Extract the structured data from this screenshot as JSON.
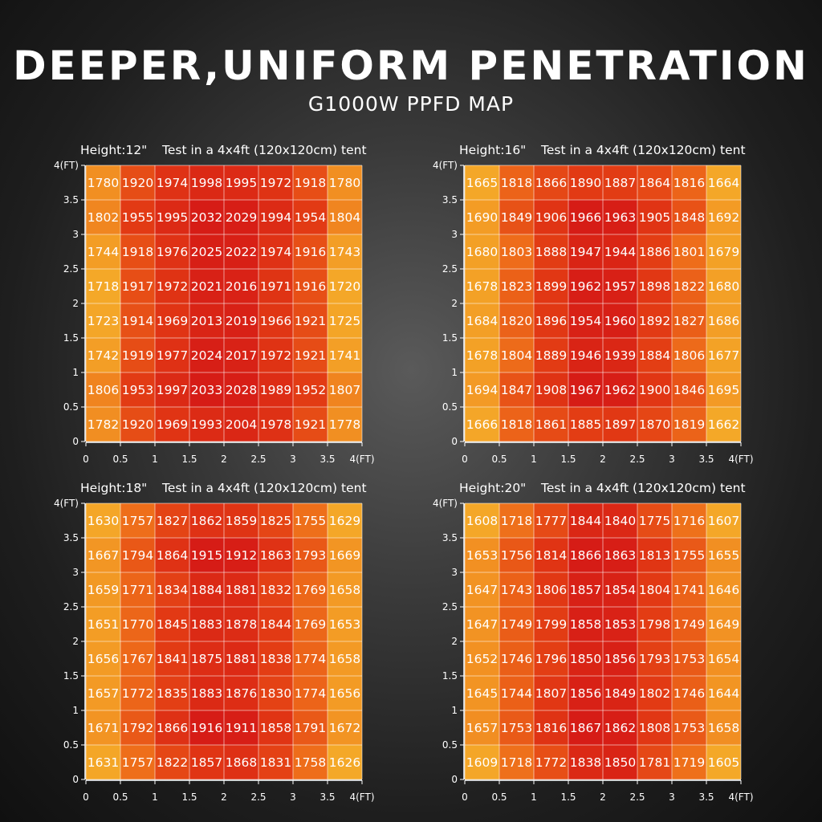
{
  "title": "DEEPER,UNIFORM PENETRATION",
  "subtitle": "G1000W PPFD MAP",
  "chart_data": [
    {
      "type": "heatmap",
      "title": "Height:12\"",
      "subtitle": "Test in a 4x4ft (120x120cm) tent",
      "x_ticks": [
        "0",
        "0.5",
        "1",
        "1.5",
        "2",
        "2.5",
        "3",
        "3.5",
        "4(FT)"
      ],
      "y_ticks": [
        "0",
        "0.5",
        "1",
        "1.5",
        "2",
        "2.5",
        "3",
        "3.5",
        "4(FT)"
      ],
      "xlim": [
        0,
        4
      ],
      "ylim": [
        0,
        4
      ],
      "rows": [
        [
          1780,
          1920,
          1974,
          1998,
          1995,
          1972,
          1918,
          1780
        ],
        [
          1802,
          1955,
          1995,
          2032,
          2029,
          1994,
          1954,
          1804
        ],
        [
          1744,
          1918,
          1976,
          2025,
          2022,
          1974,
          1916,
          1743
        ],
        [
          1718,
          1917,
          1972,
          2021,
          2016,
          1971,
          1916,
          1720
        ],
        [
          1723,
          1914,
          1969,
          2013,
          2019,
          1966,
          1921,
          1725
        ],
        [
          1742,
          1919,
          1977,
          2024,
          2017,
          1972,
          1921,
          1741
        ],
        [
          1806,
          1953,
          1997,
          2033,
          2028,
          1989,
          1952,
          1807
        ],
        [
          1782,
          1920,
          1969,
          1993,
          2004,
          1978,
          1921,
          1778
        ]
      ]
    },
    {
      "type": "heatmap",
      "title": "Height:16\"",
      "subtitle": "Test in a 4x4ft (120x120cm) tent",
      "x_ticks": [
        "0",
        "0.5",
        "1",
        "1.5",
        "2",
        "2.5",
        "3",
        "3.5",
        "4(FT)"
      ],
      "y_ticks": [
        "0",
        "0.5",
        "1",
        "1.5",
        "2",
        "2.5",
        "3",
        "3.5",
        "4(FT)"
      ],
      "xlim": [
        0,
        4
      ],
      "ylim": [
        0,
        4
      ],
      "rows": [
        [
          1665,
          1818,
          1866,
          1890,
          1887,
          1864,
          1816,
          1664
        ],
        [
          1690,
          1849,
          1906,
          1966,
          1963,
          1905,
          1848,
          1692
        ],
        [
          1680,
          1803,
          1888,
          1947,
          1944,
          1886,
          1801,
          1679
        ],
        [
          1678,
          1823,
          1899,
          1962,
          1957,
          1898,
          1822,
          1680
        ],
        [
          1684,
          1820,
          1896,
          1954,
          1960,
          1892,
          1827,
          1686
        ],
        [
          1678,
          1804,
          1889,
          1946,
          1939,
          1884,
          1806,
          1677
        ],
        [
          1694,
          1847,
          1908,
          1967,
          1962,
          1900,
          1846,
          1695
        ],
        [
          1666,
          1818,
          1861,
          1885,
          1897,
          1870,
          1819,
          1662
        ]
      ]
    },
    {
      "type": "heatmap",
      "title": "Height:18\"",
      "subtitle": "Test in a 4x4ft (120x120cm) tent",
      "x_ticks": [
        "0",
        "0.5",
        "1",
        "1.5",
        "2",
        "2.5",
        "3",
        "3.5",
        "4(FT)"
      ],
      "y_ticks": [
        "0",
        "0.5",
        "1",
        "1.5",
        "2",
        "2.5",
        "3",
        "3.5",
        "4(FT)"
      ],
      "xlim": [
        0,
        4
      ],
      "ylim": [
        0,
        4
      ],
      "rows": [
        [
          1630,
          1757,
          1827,
          1862,
          1859,
          1825,
          1755,
          1629
        ],
        [
          1667,
          1794,
          1864,
          1915,
          1912,
          1863,
          1793,
          1669
        ],
        [
          1659,
          1771,
          1834,
          1884,
          1881,
          1832,
          1769,
          1658
        ],
        [
          1651,
          1770,
          1845,
          1883,
          1878,
          1844,
          1769,
          1653
        ],
        [
          1656,
          1767,
          1841,
          1875,
          1881,
          1838,
          1774,
          1658
        ],
        [
          1657,
          1772,
          1835,
          1883,
          1876,
          1830,
          1774,
          1656
        ],
        [
          1671,
          1792,
          1866,
          1916,
          1911,
          1858,
          1791,
          1672
        ],
        [
          1631,
          1757,
          1822,
          1857,
          1868,
          1831,
          1758,
          1626
        ]
      ]
    },
    {
      "type": "heatmap",
      "title": "Height:20\"",
      "subtitle": "Test in a 4x4ft (120x120cm) tent",
      "x_ticks": [
        "0",
        "0.5",
        "1",
        "1.5",
        "2",
        "2.5",
        "3",
        "3.5",
        "4(FT)"
      ],
      "y_ticks": [
        "0",
        "0.5",
        "1",
        "1.5",
        "2",
        "2.5",
        "3",
        "3.5",
        "4(FT)"
      ],
      "xlim": [
        0,
        4
      ],
      "ylim": [
        0,
        4
      ],
      "rows": [
        [
          1608,
          1718,
          1777,
          1844,
          1840,
          1775,
          1716,
          1607
        ],
        [
          1653,
          1756,
          1814,
          1866,
          1863,
          1813,
          1755,
          1655
        ],
        [
          1647,
          1743,
          1806,
          1857,
          1854,
          1804,
          1741,
          1646
        ],
        [
          1647,
          1749,
          1799,
          1858,
          1853,
          1798,
          1749,
          1649
        ],
        [
          1652,
          1746,
          1796,
          1850,
          1856,
          1793,
          1753,
          1654
        ],
        [
          1645,
          1744,
          1807,
          1856,
          1849,
          1802,
          1746,
          1644
        ],
        [
          1657,
          1753,
          1816,
          1867,
          1862,
          1808,
          1753,
          1658
        ],
        [
          1609,
          1718,
          1772,
          1838,
          1850,
          1781,
          1719,
          1605
        ]
      ]
    }
  ]
}
